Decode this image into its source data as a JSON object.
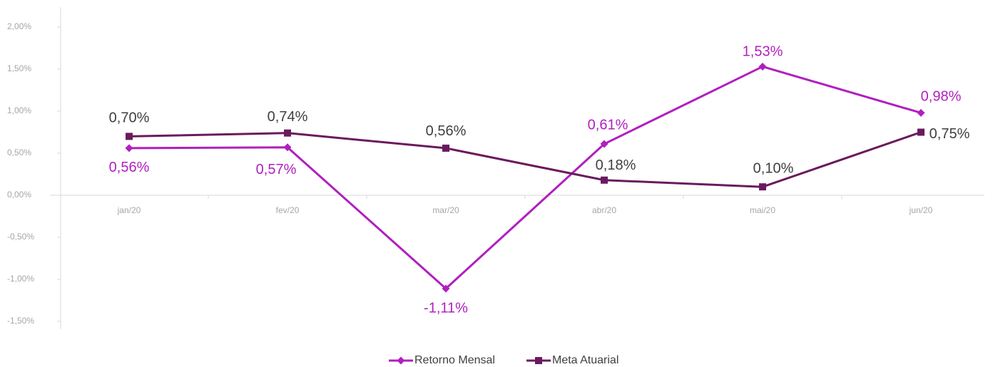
{
  "chart_data": {
    "type": "line",
    "categories": [
      "jan/20",
      "fev/20",
      "mar/20",
      "abr/20",
      "mai/20",
      "jun/20"
    ],
    "series": [
      {
        "name": "Retorno Mensal",
        "color": "#b01fbf",
        "marker": "diamond",
        "values": [
          0.56,
          0.57,
          -1.11,
          0.61,
          1.53,
          0.98
        ],
        "value_labels": [
          "0,56%",
          "0,57%",
          "-1,11%",
          "0,61%",
          "1,53%",
          "0,98%"
        ]
      },
      {
        "name": "Meta Atuarial",
        "color": "#6a1a5e",
        "marker": "square",
        "values": [
          0.7,
          0.74,
          0.56,
          0.18,
          0.1,
          0.75
        ],
        "value_labels": [
          "0,70%",
          "0,74%",
          "0,56%",
          "0,18%",
          "0,10%",
          "0,75%"
        ]
      }
    ],
    "ylim": [
      -1.5,
      2.0
    ],
    "yticks": [
      {
        "value": -1.5,
        "label": "-1,50%"
      },
      {
        "value": -1.0,
        "label": "-1,00%"
      },
      {
        "value": -0.5,
        "label": "-0,50%"
      },
      {
        "value": 0,
        "label": "0,00%"
      },
      {
        "value": 0.5,
        "label": "0,50%"
      },
      {
        "value": 1.0,
        "label": "1,00%"
      },
      {
        "value": 1.5,
        "label": "1,50%"
      },
      {
        "value": 2.0,
        "label": "2,00%"
      }
    ],
    "grid": false,
    "legend": "bottom"
  }
}
